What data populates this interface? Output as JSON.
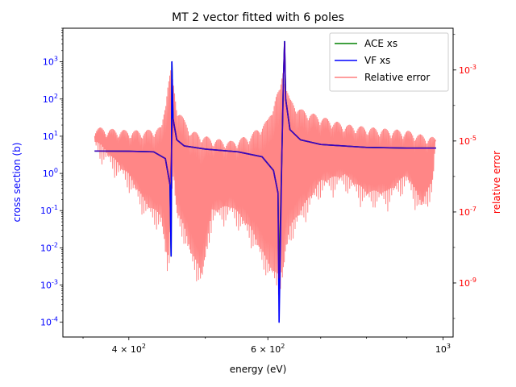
{
  "chart_data": {
    "type": "line",
    "title": "MT 2 vector fitted with 6 poles",
    "xlabel": "energy (eV)",
    "ylabel_left": "cross section (b)",
    "ylabel_right": "relative error",
    "x_scale": "log",
    "y_left_scale": "log",
    "y_right_scale": "log",
    "xlim": [
      330,
      1030
    ],
    "ylim_left": [
      4e-05,
      8000
    ],
    "ylim_right": [
      3e-11,
      0.015
    ],
    "x_ticks_major": [
      {
        "value": 400,
        "label": "4 × 10^2"
      },
      {
        "value": 600,
        "label": "6 × 10^2"
      },
      {
        "value": 1000,
        "label": "10^3"
      }
    ],
    "y_left_ticks": [
      {
        "value": 0.0001,
        "label": "10^-4"
      },
      {
        "value": 0.001,
        "label": "10^-3"
      },
      {
        "value": 0.01,
        "label": "10^-2"
      },
      {
        "value": 0.1,
        "label": "10^-1"
      },
      {
        "value": 1,
        "label": "10^0"
      },
      {
        "value": 10,
        "label": "10^1"
      },
      {
        "value": 100,
        "label": "10^2"
      },
      {
        "value": 1000,
        "label": "10^3"
      }
    ],
    "y_right_ticks": [
      {
        "value": 1e-09,
        "label": "10^-9"
      },
      {
        "value": 1e-07,
        "label": "10^-7"
      },
      {
        "value": 1e-05,
        "label": "10^-5"
      },
      {
        "value": 0.001,
        "label": "10^-3"
      }
    ],
    "grid": false,
    "legend_position": "top-right",
    "series": [
      {
        "name": "ACE xs",
        "axis": "left",
        "color": "#008000",
        "points": [
          [
            362,
            4.0
          ],
          [
            400,
            3.95
          ],
          [
            430,
            3.8
          ],
          [
            445,
            2.5
          ],
          [
            451,
            0.5
          ],
          [
            452.5,
            0.006
          ],
          [
            453.5,
            1000
          ],
          [
            455,
            30
          ],
          [
            460,
            8
          ],
          [
            470,
            5.5
          ],
          [
            500,
            4.5
          ],
          [
            550,
            3.8
          ],
          [
            590,
            2.8
          ],
          [
            610,
            1.2
          ],
          [
            618,
            0.3
          ],
          [
            620,
            0.0015
          ],
          [
            625,
            3
          ],
          [
            628,
            400
          ],
          [
            630,
            3500
          ],
          [
            632,
            100
          ],
          [
            640,
            15
          ],
          [
            660,
            8
          ],
          [
            700,
            6
          ],
          [
            800,
            5
          ],
          [
            900,
            4.8
          ],
          [
            980,
            4.8
          ]
        ]
      },
      {
        "name": "VF xs",
        "axis": "left",
        "color": "#0000ff",
        "points": [
          [
            362,
            4.0
          ],
          [
            400,
            3.95
          ],
          [
            430,
            3.8
          ],
          [
            445,
            2.5
          ],
          [
            451,
            0.5
          ],
          [
            452.5,
            0.006
          ],
          [
            453.5,
            1000
          ],
          [
            455,
            30
          ],
          [
            460,
            8
          ],
          [
            470,
            5.5
          ],
          [
            500,
            4.5
          ],
          [
            550,
            3.8
          ],
          [
            590,
            2.8
          ],
          [
            610,
            1.2
          ],
          [
            618,
            0.3
          ],
          [
            620,
            0.0001
          ],
          [
            625,
            3
          ],
          [
            628,
            400
          ],
          [
            630,
            3500
          ],
          [
            632,
            100
          ],
          [
            640,
            15
          ],
          [
            660,
            8
          ],
          [
            700,
            6
          ],
          [
            800,
            5
          ],
          [
            900,
            4.8
          ],
          [
            980,
            4.8
          ]
        ]
      },
      {
        "name": "Relative error",
        "axis": "right",
        "color": "#ff7f7f",
        "band": [
          [
            362,
            3e-06,
            2.5e-05
          ],
          [
            380,
            1e-06,
            2.2e-05
          ],
          [
            400,
            3e-07,
            2e-05
          ],
          [
            420,
            5e-08,
            2e-05
          ],
          [
            440,
            2e-08,
            2.5e-05
          ],
          [
            448,
            1e-09,
            0.0004
          ],
          [
            452,
            1e-08,
            0.001
          ],
          [
            455,
            5e-07,
            0.0005
          ],
          [
            460,
            3e-08,
            0.0001
          ],
          [
            470,
            1e-08,
            4e-05
          ],
          [
            480,
            2e-09,
            2e-05
          ],
          [
            495,
            5e-10,
            1.5e-05
          ],
          [
            510,
            3e-08,
            1.2e-05
          ],
          [
            540,
            4e-08,
            1e-05
          ],
          [
            570,
            1e-08,
            1.5e-05
          ],
          [
            600,
            1e-09,
            4e-05
          ],
          [
            615,
            5e-10,
            0.0002
          ],
          [
            622,
            4e-10,
            0.0003
          ],
          [
            628,
            8e-10,
            0.0015
          ],
          [
            632,
            3e-09,
            0.0004
          ],
          [
            640,
            1e-08,
            0.00015
          ],
          [
            660,
            3e-08,
            8e-05
          ],
          [
            700,
            2e-07,
            5e-05
          ],
          [
            750,
            3e-07,
            3e-05
          ],
          [
            800,
            1e-07,
            2.5e-05
          ],
          [
            850,
            1e-07,
            2.2e-05
          ],
          [
            900,
            3e-07,
            2e-05
          ],
          [
            940,
            5e-08,
            1.5e-05
          ],
          [
            970,
            2e-07,
            1.3e-05
          ],
          [
            980,
            5e-06,
            1.2e-05
          ]
        ]
      }
    ]
  }
}
